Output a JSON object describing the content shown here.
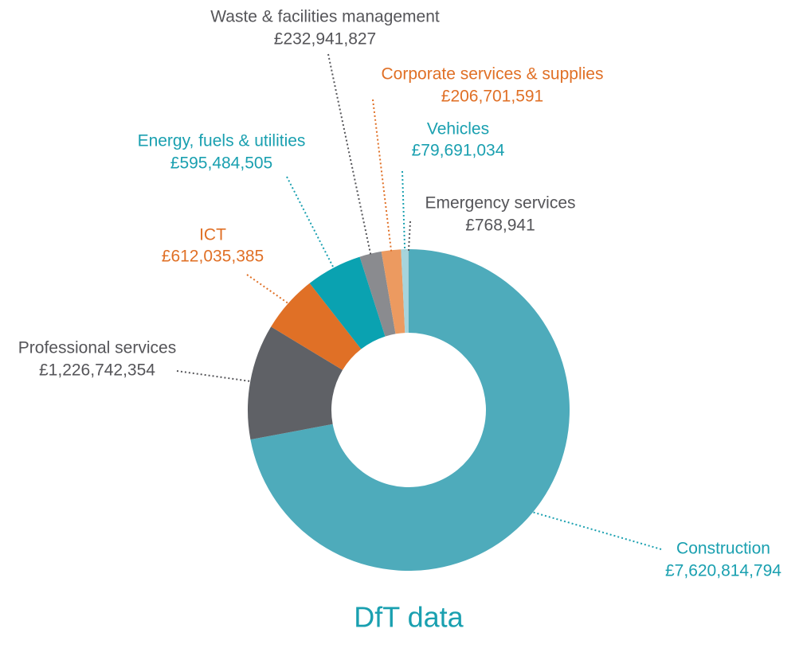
{
  "chart_data": {
    "type": "donut",
    "title": "DfT data",
    "categories": [
      "Construction",
      "Professional services",
      "ICT",
      "Energy, fuels & utilities",
      "Waste & facilities management",
      "Corporate services & supplies",
      "Vehicles",
      "Emergency services"
    ],
    "values": [
      7620814794,
      1226742354,
      612035385,
      595484505,
      232941827,
      206701591,
      79691034,
      768941
    ],
    "value_labels": [
      "£7,620,814,794",
      "£1,226,742,354",
      "£612,035,385",
      "£595,484,505",
      "£232,941,827",
      "£206,701,591",
      "£79,691,034",
      "£768,941"
    ],
    "colors": [
      "#4eabbb",
      "#5f6166",
      "#e07026",
      "#0aa2b1",
      "#8a8b8f",
      "#ec9a60",
      "#a6d4dc",
      "#5f6166"
    ],
    "label_colors": [
      "#1aa0b0",
      "#555559",
      "#e07026",
      "#1aa0b0",
      "#555559",
      "#e07026",
      "#1aa0b0",
      "#555559"
    ]
  }
}
